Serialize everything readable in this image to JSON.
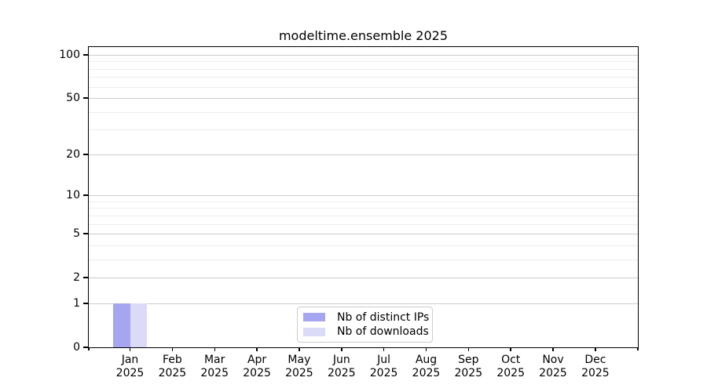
{
  "chart_data": {
    "type": "bar",
    "title": "modeltime.ensemble 2025",
    "categories": [
      "Jan",
      "Feb",
      "Mar",
      "Apr",
      "May",
      "Jun",
      "Jul",
      "Aug",
      "Sep",
      "Oct",
      "Nov",
      "Dec"
    ],
    "x_year_label": "2025",
    "series": [
      {
        "name": "Nb of distinct IPs",
        "color": "#a5a5f2",
        "values": [
          1,
          0,
          0,
          0,
          0,
          0,
          0,
          0,
          0,
          0,
          0,
          0
        ]
      },
      {
        "name": "Nb of downloads",
        "color": "#dbdbf8",
        "values": [
          1,
          0,
          0,
          0,
          0,
          0,
          0,
          0,
          0,
          0,
          0,
          0
        ]
      }
    ],
    "yscale": "log1p",
    "ylim": [
      0,
      113
    ],
    "y_major_ticks": [
      100,
      50,
      20,
      10,
      5,
      2,
      1,
      0
    ],
    "y_minor_gridlines": [
      3,
      4,
      6,
      7,
      8,
      9,
      30,
      40,
      60,
      70,
      80,
      90
    ],
    "grid": "horizontal",
    "legend_position": "bottom-center"
  }
}
